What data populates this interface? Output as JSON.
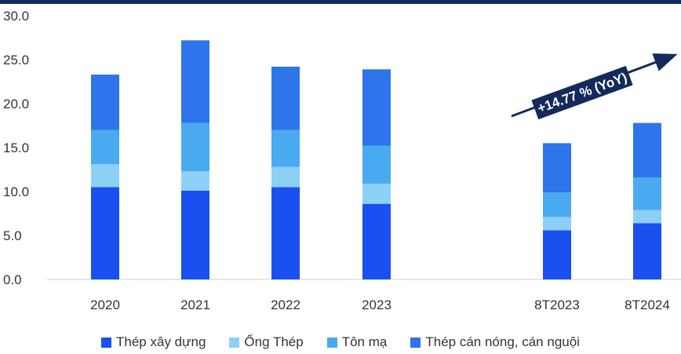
{
  "chart_data": {
    "type": "bar",
    "stacked": true,
    "categories": [
      "2020",
      "2021",
      "2022",
      "2023",
      "8T2023",
      "8T2024"
    ],
    "series": [
      {
        "name": "Thép xây dựng",
        "color": "#1a4ff0",
        "values": [
          10.5,
          10.1,
          10.5,
          8.6,
          5.6,
          6.4
        ]
      },
      {
        "name": "Ống Thép",
        "color": "#8dd0f7",
        "values": [
          2.6,
          2.2,
          2.3,
          2.3,
          1.5,
          1.5
        ]
      },
      {
        "name": "Tôn mạ",
        "color": "#4aaaf0",
        "values": [
          3.9,
          5.5,
          4.2,
          4.3,
          2.8,
          3.7
        ]
      },
      {
        "name": "Thép cán nóng, cán nguội",
        "color": "#2e74ea",
        "values": [
          6.3,
          9.4,
          7.2,
          8.7,
          5.6,
          6.2
        ]
      }
    ],
    "ylim": [
      0,
      30
    ],
    "yticks": [
      "0.0",
      "5.0",
      "10.0",
      "15.0",
      "20.0",
      "25.0",
      "30.0"
    ],
    "legend_position": "bottom",
    "annotation": {
      "text": "+14.77 % (YoY)"
    }
  }
}
